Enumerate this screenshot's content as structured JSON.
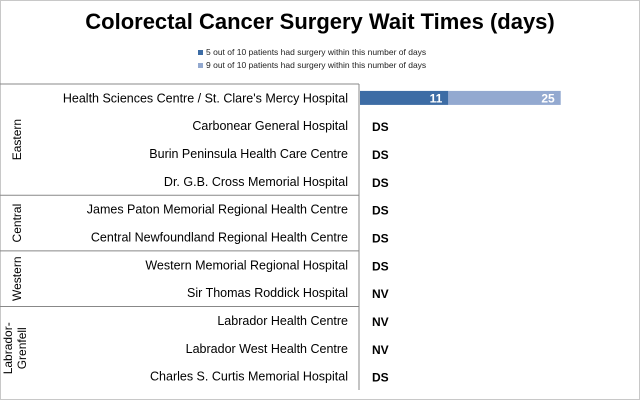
{
  "chart_data": {
    "type": "bar",
    "title": "Colorectal Cancer Surgery Wait Times (days)",
    "legend": [
      {
        "name": "5 out of 10 patients had surgery within this number of days",
        "color": "#3d6ca5"
      },
      {
        "name": "9 out of 10 patients had surgery within this number of days",
        "color": "#93a9d0"
      }
    ],
    "colors": {
      "median": "#3d6ca5",
      "p90": "#93a9d0"
    },
    "x_max": 35,
    "groups": [
      {
        "name": "Eastern",
        "rows": [
          {
            "label": "Health Sciences Centre / St. Clare's Mercy Hospital",
            "median": 11,
            "p90": 25,
            "median_label": "11",
            "p90_label": "25"
          },
          {
            "label": "Carbonear General Hospital",
            "note": "DS"
          },
          {
            "label": "Burin Peninsula Health Care Centre",
            "note": "DS"
          },
          {
            "label": "Dr. G.B. Cross Memorial Hospital",
            "note": "DS"
          }
        ]
      },
      {
        "name": "Central",
        "rows": [
          {
            "label": "James Paton Memorial Regional Health Centre",
            "note": "DS"
          },
          {
            "label": "Central Newfoundland Regional Health Centre",
            "note": "DS"
          }
        ]
      },
      {
        "name": "Western",
        "rows": [
          {
            "label": "Western Memorial Regional Hospital",
            "note": "DS"
          },
          {
            "label": "Sir Thomas Roddick Hospital",
            "note": "NV"
          }
        ]
      },
      {
        "name": "Labrador-\nGrenfell",
        "rows": [
          {
            "label": "Labrador Health Centre",
            "note": "NV"
          },
          {
            "label": "Labrador West Health Centre",
            "note": "NV"
          },
          {
            "label": "Charles S. Curtis Memorial Hospital",
            "note": "DS"
          }
        ]
      }
    ]
  }
}
